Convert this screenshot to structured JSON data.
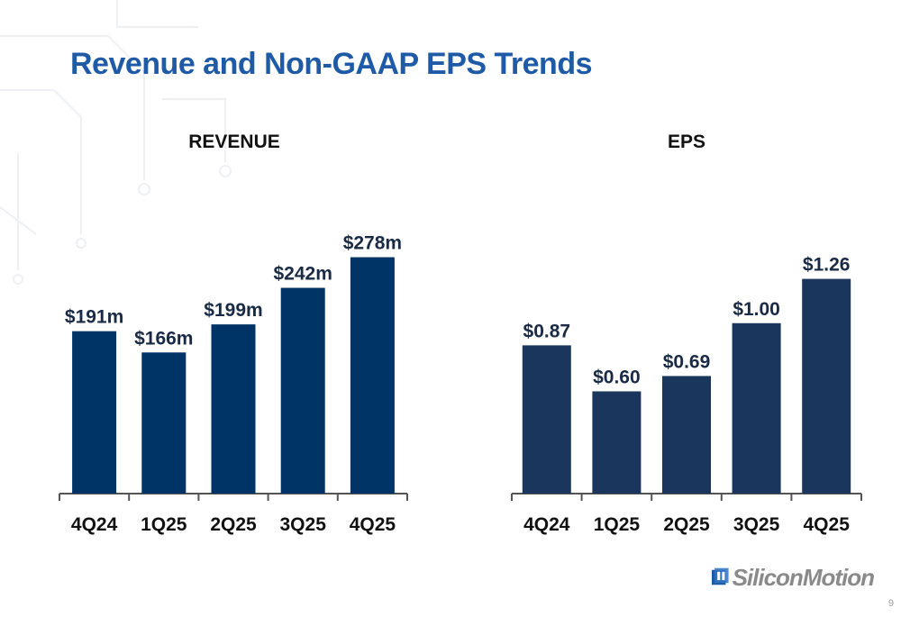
{
  "slide": {
    "title": "Revenue and Non-GAAP EPS Trends",
    "page_number": "9",
    "logo_text": "SiliconMotion",
    "colors": {
      "title": "#1f5aa6",
      "revenue_bar": "#003366",
      "eps_bar": "#1a365d"
    }
  },
  "chart_data": [
    {
      "type": "bar",
      "title": "REVENUE",
      "categories": [
        "4Q24",
        "1Q25",
        "2Q25",
        "3Q25",
        "4Q25"
      ],
      "values": [
        191,
        166,
        199,
        242,
        278
      ],
      "data_labels": [
        "$191m",
        "$166m",
        "$199m",
        "$242m",
        "$278m"
      ],
      "ylim": [
        0,
        300
      ],
      "grid": false,
      "color": "#003366"
    },
    {
      "type": "bar",
      "title": "EPS",
      "categories": [
        "4Q24",
        "1Q25",
        "2Q25",
        "3Q25",
        "4Q25"
      ],
      "values": [
        0.87,
        0.6,
        0.69,
        1.0,
        1.26
      ],
      "data_labels": [
        "$0.87",
        "$0.60",
        "$0.69",
        "$1.00",
        "$1.26"
      ],
      "ylim": [
        0,
        1.4
      ],
      "grid": false,
      "color": "#1a365d"
    }
  ]
}
